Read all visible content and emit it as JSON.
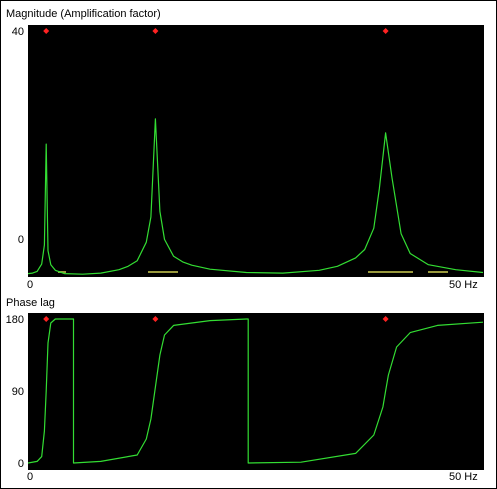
{
  "panels": {
    "magnitude": {
      "title": "Magnitude (Amplification factor)",
      "y_max_label": "40",
      "y_zero_label": "0",
      "x_min_label": "0",
      "x_max_label": "50 Hz"
    },
    "phase": {
      "title": "Phase lag",
      "y_max_label": "180",
      "y_mid_label": "90",
      "y_zero_label": "0",
      "x_min_label": "0",
      "x_max_label": "50 Hz"
    }
  },
  "colors": {
    "plot_background": "#000000",
    "curve": "#33dd33",
    "marker": "#ff2222",
    "baseline_marks": "#ffff66"
  },
  "chart_data": [
    {
      "type": "line",
      "title": "Magnitude (Amplification factor)",
      "xlabel": "Hz",
      "xlim": [
        0,
        50
      ],
      "ylim": [
        -3.7,
        40
      ],
      "resonances_hz": [
        2,
        14,
        39.3
      ],
      "peaks": [
        20,
        24.5,
        22
      ],
      "series": [
        {
          "x": [
            0,
            0.5,
            1,
            1.5,
            1.8,
            2,
            2.2,
            2.5,
            3,
            4,
            6,
            8,
            10,
            11,
            12,
            13,
            13.5,
            14,
            14.5,
            15,
            16,
            17,
            18,
            20,
            24,
            28,
            32,
            34,
            36,
            37,
            38,
            38.6,
            39.3,
            40,
            41,
            42,
            44,
            47,
            50
          ],
          "y": [
            -3.1,
            -3.0,
            -2.7,
            -1.4,
            2.0,
            20.0,
            1.0,
            -1.5,
            -2.5,
            -3.1,
            -3.2,
            -3.0,
            -2.4,
            -1.8,
            -0.8,
            2.5,
            7.0,
            24.5,
            8.0,
            3.0,
            0.0,
            -1.0,
            -1.6,
            -2.3,
            -2.9,
            -3.0,
            -2.5,
            -1.8,
            -0.3,
            1.2,
            5.0,
            12.0,
            22.0,
            14.0,
            4.0,
            0.5,
            -1.5,
            -2.4,
            -2.9
          ]
        }
      ]
    },
    {
      "type": "line",
      "title": "Phase lag",
      "xlabel": "Hz",
      "xlim": [
        0,
        50
      ],
      "ylim": [
        0,
        180
      ],
      "series": [
        {
          "x": [
            0,
            1.0,
            1.5,
            1.8,
            2.0,
            2.2,
            2.5,
            3.0,
            4.0,
            5.0,
            5.0,
            8,
            12,
            13,
            13.5,
            14,
            14.5,
            15,
            16,
            20,
            24,
            24.2,
            24.2,
            30,
            36,
            38,
            39,
            39.3,
            39.6,
            40.5,
            42,
            45,
            50
          ],
          "y": [
            0,
            2,
            8,
            40,
            90,
            150,
            175,
            180,
            180,
            180,
            0,
            2,
            10,
            30,
            55,
            95,
            135,
            160,
            172,
            178,
            180,
            180,
            0,
            1,
            12,
            35,
            70,
            90,
            110,
            145,
            163,
            172,
            176
          ]
        }
      ]
    }
  ]
}
